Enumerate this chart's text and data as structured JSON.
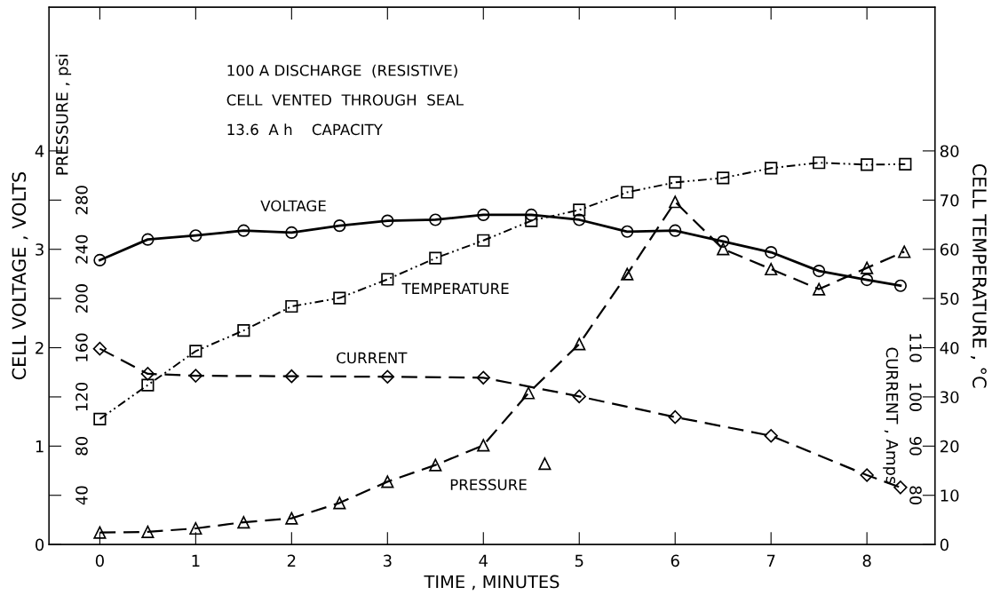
{
  "chart_data": [
    {
      "type": "line",
      "xlabel": "TIME , MINUTES",
      "ylabel": "CELL VOLTAGE , VOLTS",
      "y2label": "CELL TEMPERATURE , °C",
      "y3label": "PRESSURE , psi",
      "annotations": [
        "100 A DISCHARGE  (RESISTIVE)",
        "CELL  VENTED  THROUGH  SEAL",
        "13.6  A h    CAPACITY"
      ],
      "xlim": [
        -0.53,
        8.71
      ],
      "xticks": [
        0,
        1,
        2,
        3,
        4,
        5,
        6,
        7,
        8
      ],
      "ylim": [
        0,
        5.46
      ],
      "yticks": [
        0,
        {
          "value": 0.5,
          "label": null
        },
        1,
        {
          "value": 1.5,
          "label": null
        },
        2,
        {
          "value": 2.5,
          "label": null
        },
        3,
        {
          "value": 3.5,
          "label": null
        },
        4
      ],
      "y2lim": [
        0,
        109.2
      ],
      "y2ticks": [
        0,
        10,
        20,
        30,
        40,
        50,
        60,
        70,
        80
      ],
      "y3lim": [
        0,
        436.8
      ],
      "y3ticks": [
        40,
        80,
        120,
        160,
        200,
        240,
        280
      ],
      "series": [
        {
          "name": "VOLTAGE",
          "color": "#000000",
          "marker": "circle",
          "line_style": "solid",
          "x": [
            0,
            0.5,
            1,
            1.5,
            2,
            2.5,
            3,
            3.5,
            4,
            4.5,
            5,
            5.5,
            6,
            6.5,
            7,
            7.5,
            8,
            8.35
          ],
          "values": [
            2.89,
            3.1,
            3.14,
            3.19,
            3.17,
            3.24,
            3.29,
            3.3,
            3.35,
            3.35,
            3.3,
            3.18,
            3.19,
            3.08,
            2.97,
            2.78,
            2.69,
            2.63
          ]
        },
        {
          "name": "TEMPERATURE",
          "color": "#000000",
          "axis": "y2",
          "marker": "square",
          "line_style": "dotted",
          "x": [
            0,
            0.5,
            1,
            1.5,
            2,
            2.5,
            3,
            3.5,
            4,
            4.5,
            5,
            5.5,
            6,
            6.5,
            7,
            7.5,
            8,
            8.4
          ],
          "values": [
            25.5,
            32.4,
            39.3,
            43.5,
            48.4,
            50.1,
            53.9,
            58.2,
            61.8,
            65.8,
            68,
            71.6,
            73.6,
            74.5,
            76.5,
            77.6,
            77.2,
            77.3
          ]
        },
        {
          "name": "PRESSURE",
          "color": "#000000",
          "axis": "y3",
          "marker": "triangle",
          "line_style": "dashed",
          "x": [
            0,
            0.5,
            1,
            1.5,
            2,
            2.5,
            3,
            3.5,
            4,
            4.47,
            5,
            5.5,
            6,
            6.5,
            7,
            7.5,
            8,
            8.39
          ],
          "values": [
            9.7,
            10.3,
            13.1,
            18.1,
            21.3,
            33.8,
            51.1,
            64.6,
            80.7,
            123.2,
            163,
            219.8,
            278.6,
            240.2,
            223.9,
            207.6,
            224.9,
            238
          ]
        },
        {
          "type": "scatter",
          "color": "#000000",
          "axis": "y3",
          "marker": "triangle",
          "x": [
            4.64
          ],
          "values": [
            65.7
          ]
        }
      ]
    },
    {
      "type": "line",
      "ylabel": "CURRENT , Amps",
      "tick_labels": "y",
      "xlim": [
        -0.53,
        8.71
      ],
      "ylim": [
        70,
        179.2
      ],
      "yticks": [
        80,
        90,
        100,
        110
      ],
      "series": [
        {
          "name": "CURRENT",
          "color": "#000000",
          "marker": "diamond",
          "line_style": "dashed",
          "x": [
            0,
            0.5,
            1,
            2,
            3,
            4,
            5,
            6,
            7,
            8,
            8.35
          ],
          "values": [
            109.8,
            104.7,
            104.3,
            104.2,
            104.1,
            103.9,
            100.1,
            95.9,
            92.1,
            84.1,
            81.6
          ]
        }
      ]
    }
  ]
}
